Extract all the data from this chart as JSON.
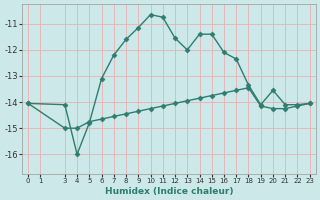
{
  "line1_x": [
    0,
    3,
    4,
    5,
    6,
    7,
    8,
    9,
    10,
    11,
    12,
    13,
    14,
    15,
    16,
    17,
    18,
    19,
    20,
    21,
    22,
    23
  ],
  "line1_y": [
    -14.05,
    -14.1,
    -16.0,
    -14.8,
    -13.1,
    -12.2,
    -11.6,
    -11.15,
    -10.65,
    -10.75,
    -11.55,
    -12.0,
    -11.4,
    -11.4,
    -12.1,
    -12.35,
    -13.35,
    -14.1,
    -13.55,
    -14.1,
    -14.1,
    -14.05
  ],
  "line2_x": [
    0,
    3,
    4,
    5,
    6,
    7,
    8,
    9,
    10,
    11,
    12,
    13,
    14,
    15,
    16,
    17,
    18,
    19,
    20,
    21,
    22,
    23
  ],
  "line2_y": [
    -14.05,
    -15.0,
    -15.0,
    -14.75,
    -14.65,
    -14.55,
    -14.45,
    -14.35,
    -14.25,
    -14.15,
    -14.05,
    -13.95,
    -13.85,
    -13.75,
    -13.65,
    -13.55,
    -13.45,
    -14.15,
    -14.25,
    -14.25,
    -14.15,
    -14.05
  ],
  "line_color": "#2e7d70",
  "bg_color": "#cce8e8",
  "grid_color": "#e8b0b0",
  "xlabel": "Humidex (Indice chaleur)",
  "ylim": [
    -16.75,
    -10.25
  ],
  "yticks": [
    -16,
    -15,
    -14,
    -13,
    -12,
    -11
  ],
  "xticks": [
    0,
    1,
    3,
    4,
    5,
    6,
    7,
    8,
    9,
    10,
    11,
    12,
    13,
    14,
    15,
    16,
    17,
    18,
    19,
    20,
    21,
    22,
    23
  ],
  "marker": "D",
  "markersize": 2.5,
  "linewidth": 1.0,
  "title_color": "#2e7d70",
  "tick_color": "#333333",
  "spine_color": "#999999"
}
